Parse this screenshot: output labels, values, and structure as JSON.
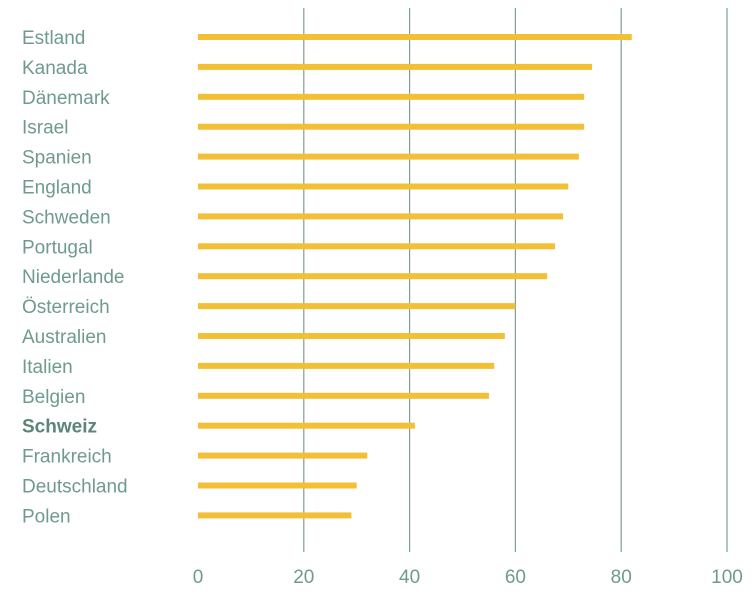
{
  "chart_data": {
    "type": "bar",
    "orientation": "horizontal",
    "categories": [
      "Estland",
      "Kanada",
      "Dänemark",
      "Israel",
      "Spanien",
      "England",
      "Schweden",
      "Portugal",
      "Niederlande",
      "Österreich",
      "Australien",
      "Italien",
      "Belgien",
      "Schweiz",
      "Frankreich",
      "Deutschland",
      "Polen"
    ],
    "values": [
      82,
      74.5,
      73,
      73,
      72,
      70,
      69,
      67.5,
      66,
      60,
      58,
      56,
      55,
      41,
      32,
      30,
      29
    ],
    "highlighted_category": "Schweiz",
    "xlim": [
      0,
      100
    ],
    "xticks": [
      "0",
      "20",
      "40",
      "60",
      "80",
      "100"
    ],
    "grid": "vertical",
    "title": "",
    "xlabel": "",
    "ylabel": "",
    "colors": {
      "bar": "#f2bf35",
      "grid": "#7f9e95",
      "label": "#6f9a90",
      "label_highlight": "#5c8479"
    }
  }
}
